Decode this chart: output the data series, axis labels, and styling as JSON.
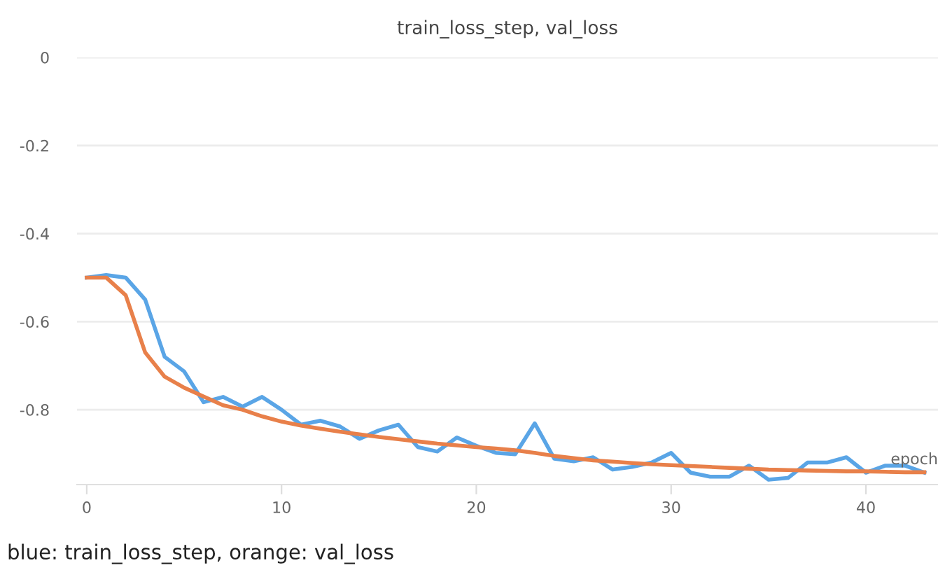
{
  "chart_data": {
    "type": "line",
    "title": "train_loss_step, val_loss",
    "xlabel": "epoch",
    "x": [
      0,
      1,
      2,
      3,
      4,
      5,
      6,
      7,
      8,
      9,
      10,
      11,
      12,
      13,
      14,
      15,
      16,
      17,
      18,
      19,
      20,
      21,
      22,
      23,
      24,
      25,
      26,
      27,
      28,
      29,
      30,
      31,
      32,
      33,
      34,
      35,
      36,
      37,
      38,
      39,
      40,
      41,
      42,
      43
    ],
    "series": [
      {
        "color": "#5aa5e6",
        "values": [
          -0.5,
          -0.494,
          -0.5,
          -0.55,
          -0.68,
          -0.713,
          -0.783,
          -0.771,
          -0.793,
          -0.771,
          -0.8,
          -0.834,
          -0.825,
          -0.838,
          -0.866,
          -0.847,
          -0.834,
          -0.885,
          -0.895,
          -0.863,
          -0.882,
          -0.898,
          -0.901,
          -0.831,
          -0.911,
          -0.917,
          -0.908,
          -0.936,
          -0.93,
          -0.92,
          -0.898,
          -0.943,
          -0.952,
          -0.952,
          -0.927,
          -0.959,
          -0.955,
          -0.92,
          -0.92,
          -0.908,
          -0.943,
          -0.927,
          -0.927,
          -0.943
        ]
      },
      {
        "color": "#e8804a",
        "values": [
          -0.5,
          -0.5,
          -0.54,
          -0.67,
          -0.725,
          -0.75,
          -0.77,
          -0.79,
          -0.8,
          -0.815,
          -0.827,
          -0.836,
          -0.843,
          -0.85,
          -0.856,
          -0.862,
          -0.867,
          -0.872,
          -0.877,
          -0.881,
          -0.885,
          -0.888,
          -0.892,
          -0.898,
          -0.905,
          -0.91,
          -0.915,
          -0.918,
          -0.921,
          -0.924,
          -0.926,
          -0.928,
          -0.93,
          -0.932,
          -0.934,
          -0.936,
          -0.937,
          -0.938,
          -0.939,
          -0.94,
          -0.94,
          -0.941,
          -0.942,
          -0.942
        ]
      }
    ],
    "xlim": [
      -0.5,
      43.7
    ],
    "ylim": [
      -0.97,
      0
    ],
    "xticks": [
      0,
      10,
      20,
      30,
      40
    ],
    "yticks": [
      0,
      -0.2,
      -0.4,
      -0.6,
      -0.8
    ],
    "grid": "y",
    "legend": false,
    "marker": "none",
    "line_style": "solid",
    "annotations": [
      "blue: train_loss_step, orange: val_loss"
    ]
  }
}
